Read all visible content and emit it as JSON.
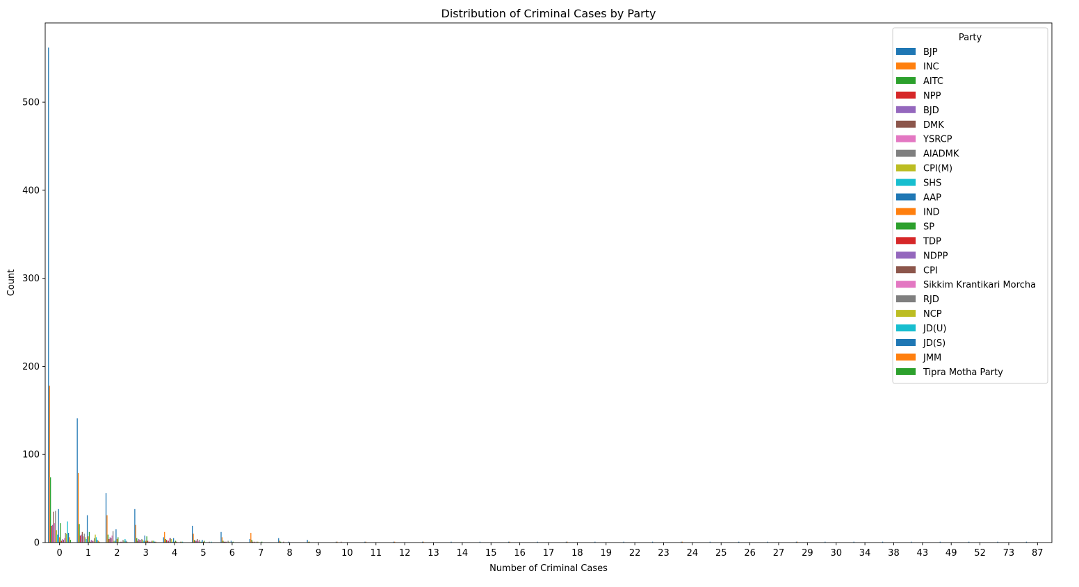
{
  "chart_data": {
    "type": "bar",
    "title": "Distribution of Criminal Cases by Party",
    "xlabel": "Number of Criminal Cases",
    "ylabel": "Count",
    "ylim": [
      0,
      590
    ],
    "yticks": [
      0,
      100,
      200,
      300,
      400,
      500
    ],
    "categories": [
      "0",
      "1",
      "2",
      "3",
      "4",
      "5",
      "6",
      "7",
      "8",
      "9",
      "10",
      "11",
      "12",
      "13",
      "14",
      "15",
      "16",
      "17",
      "18",
      "19",
      "22",
      "23",
      "24",
      "25",
      "26",
      "27",
      "29",
      "30",
      "34",
      "38",
      "43",
      "49",
      "52",
      "73",
      "87"
    ],
    "legend": {
      "title": "Party",
      "position": "top-right"
    },
    "series": [
      {
        "name": "BJP",
        "color": "#1f77b4",
        "values": [
          562,
          141,
          56,
          38,
          6,
          19,
          12,
          4,
          5,
          3,
          1,
          1,
          1,
          1,
          1,
          1,
          1,
          1,
          1,
          1,
          1,
          1,
          1,
          1,
          1,
          1,
          1,
          1,
          1,
          1,
          1,
          1,
          1,
          1,
          1
        ]
      },
      {
        "name": "INC",
        "color": "#ff7f0e",
        "values": [
          178,
          79,
          31,
          20,
          12,
          10,
          6,
          11,
          2,
          1,
          1,
          1,
          1,
          1,
          0,
          0,
          1,
          0,
          1,
          0,
          0,
          0,
          1,
          0,
          0,
          0,
          1,
          0,
          0,
          0,
          0,
          0,
          0,
          0,
          0
        ]
      },
      {
        "name": "AITC",
        "color": "#2ca02c",
        "values": [
          74,
          21,
          9,
          5,
          4,
          3,
          2,
          3,
          1,
          1,
          0,
          0,
          0,
          0,
          0,
          0,
          0,
          0,
          0,
          0,
          0,
          0,
          0,
          0,
          0,
          0,
          0,
          0,
          0,
          0,
          0,
          0,
          0,
          0,
          0
        ]
      },
      {
        "name": "NPP",
        "color": "#d62728",
        "values": [
          19,
          8,
          4,
          2,
          3,
          2,
          1,
          1,
          0,
          0,
          0,
          0,
          0,
          0,
          0,
          0,
          0,
          0,
          0,
          0,
          0,
          0,
          0,
          0,
          0,
          0,
          0,
          0,
          0,
          0,
          0,
          0,
          0,
          0,
          0
        ]
      },
      {
        "name": "BJD",
        "color": "#9467bd",
        "values": [
          20,
          9,
          6,
          4,
          2,
          2,
          1,
          0,
          0,
          0,
          0,
          0,
          0,
          0,
          0,
          0,
          0,
          0,
          0,
          0,
          0,
          0,
          0,
          0,
          0,
          0,
          0,
          0,
          0,
          0,
          0,
          0,
          0,
          0,
          0
        ]
      },
      {
        "name": "DMK",
        "color": "#8c564b",
        "values": [
          35,
          12,
          5,
          3,
          2,
          4,
          1,
          1,
          1,
          0,
          1,
          0,
          0,
          0,
          0,
          0,
          0,
          0,
          0,
          0,
          0,
          0,
          0,
          0,
          0,
          0,
          0,
          0,
          0,
          0,
          0,
          0,
          0,
          0,
          0
        ]
      },
      {
        "name": "YSRCP",
        "color": "#e377c2",
        "values": [
          22,
          7,
          8,
          3,
          5,
          2,
          0,
          0,
          0,
          0,
          0,
          0,
          0,
          0,
          0,
          0,
          0,
          0,
          0,
          0,
          0,
          0,
          0,
          0,
          0,
          0,
          0,
          0,
          0,
          0,
          0,
          0,
          0,
          0,
          0
        ]
      },
      {
        "name": "AIADMK",
        "color": "#7f7f7f",
        "values": [
          36,
          10,
          13,
          4,
          5,
          3,
          2,
          1,
          0,
          0,
          0,
          0,
          0,
          0,
          0,
          0,
          0,
          0,
          0,
          0,
          0,
          0,
          0,
          0,
          0,
          0,
          0,
          0,
          0,
          0,
          0,
          0,
          0,
          0,
          0
        ]
      },
      {
        "name": "CPI(M)",
        "color": "#bcbd22",
        "values": [
          14,
          6,
          2,
          3,
          4,
          1,
          1,
          1,
          0,
          0,
          0,
          0,
          0,
          0,
          0,
          0,
          0,
          0,
          0,
          0,
          0,
          0,
          0,
          0,
          0,
          0,
          0,
          0,
          0,
          0,
          0,
          0,
          0,
          0,
          0
        ]
      },
      {
        "name": "SHS",
        "color": "#17becf",
        "values": [
          9,
          4,
          2,
          2,
          1,
          1,
          0,
          0,
          0,
          0,
          0,
          0,
          0,
          0,
          0,
          0,
          0,
          0,
          0,
          0,
          0,
          0,
          0,
          0,
          0,
          0,
          0,
          0,
          0,
          0,
          0,
          0,
          0,
          0,
          0
        ]
      },
      {
        "name": "AAP",
        "color": "#1f77b4",
        "values": [
          38,
          31,
          15,
          8,
          5,
          3,
          2,
          0,
          1,
          0,
          0,
          0,
          0,
          0,
          0,
          0,
          0,
          0,
          0,
          0,
          0,
          0,
          0,
          0,
          0,
          0,
          0,
          0,
          0,
          0,
          0,
          0,
          0,
          0,
          0
        ]
      },
      {
        "name": "IND",
        "color": "#ff7f0e",
        "values": [
          6,
          7,
          4,
          2,
          1,
          1,
          0,
          0,
          0,
          0,
          0,
          0,
          0,
          0,
          0,
          0,
          0,
          0,
          0,
          0,
          0,
          0,
          0,
          0,
          0,
          0,
          0,
          0,
          0,
          0,
          0,
          0,
          0,
          0,
          0
        ]
      },
      {
        "name": "SP",
        "color": "#2ca02c",
        "values": [
          22,
          12,
          6,
          7,
          2,
          2,
          1,
          1,
          0,
          0,
          0,
          0,
          0,
          0,
          0,
          0,
          0,
          0,
          0,
          0,
          0,
          0,
          0,
          0,
          0,
          0,
          0,
          0,
          0,
          0,
          0,
          0,
          0,
          0,
          0
        ]
      },
      {
        "name": "TDP",
        "color": "#d62728",
        "values": [
          2,
          1,
          0,
          2,
          1,
          0,
          0,
          0,
          0,
          0,
          0,
          0,
          0,
          0,
          0,
          0,
          0,
          0,
          0,
          0,
          0,
          0,
          0,
          0,
          0,
          0,
          0,
          0,
          0,
          0,
          0,
          0,
          0,
          0,
          0
        ]
      },
      {
        "name": "NDPP",
        "color": "#9467bd",
        "values": [
          4,
          3,
          1,
          1,
          0,
          0,
          0,
          0,
          0,
          0,
          0,
          0,
          0,
          0,
          0,
          0,
          0,
          0,
          0,
          0,
          0,
          0,
          0,
          0,
          0,
          0,
          0,
          0,
          0,
          0,
          0,
          0,
          0,
          0,
          0
        ]
      },
      {
        "name": "CPI",
        "color": "#8c564b",
        "values": [
          3,
          2,
          1,
          1,
          0,
          0,
          0,
          0,
          0,
          0,
          0,
          0,
          0,
          0,
          0,
          0,
          0,
          0,
          0,
          0,
          0,
          0,
          0,
          0,
          0,
          0,
          0,
          0,
          0,
          0,
          0,
          0,
          0,
          0,
          0
        ]
      },
      {
        "name": "Sikkim Krantikari Morcha",
        "color": "#e377c2",
        "values": [
          5,
          2,
          1,
          1,
          0,
          0,
          0,
          0,
          0,
          0,
          0,
          0,
          0,
          0,
          0,
          0,
          0,
          0,
          0,
          0,
          0,
          0,
          0,
          0,
          0,
          0,
          0,
          0,
          0,
          0,
          0,
          0,
          0,
          0,
          0
        ]
      },
      {
        "name": "RJD",
        "color": "#7f7f7f",
        "values": [
          11,
          5,
          3,
          2,
          1,
          1,
          0,
          0,
          0,
          0,
          0,
          0,
          0,
          0,
          0,
          0,
          0,
          0,
          0,
          0,
          0,
          0,
          0,
          0,
          0,
          0,
          0,
          0,
          0,
          0,
          0,
          0,
          0,
          0,
          0
        ]
      },
      {
        "name": "NCP",
        "color": "#bcbd22",
        "values": [
          10,
          9,
          2,
          2,
          1,
          0,
          0,
          0,
          0,
          0,
          0,
          0,
          0,
          0,
          0,
          0,
          0,
          0,
          0,
          0,
          0,
          0,
          0,
          0,
          0,
          0,
          0,
          0,
          0,
          0,
          0,
          0,
          0,
          0,
          0
        ]
      },
      {
        "name": "JD(U)",
        "color": "#17becf",
        "values": [
          24,
          6,
          4,
          2,
          1,
          1,
          0,
          0,
          0,
          0,
          0,
          0,
          0,
          0,
          0,
          0,
          0,
          0,
          0,
          0,
          0,
          0,
          0,
          0,
          0,
          0,
          0,
          0,
          0,
          0,
          0,
          0,
          0,
          0,
          0
        ]
      },
      {
        "name": "JD(S)",
        "color": "#1f77b4",
        "values": [
          11,
          3,
          2,
          1,
          0,
          0,
          0,
          0,
          0,
          0,
          0,
          0,
          0,
          0,
          0,
          0,
          0,
          0,
          0,
          0,
          0,
          0,
          0,
          0,
          0,
          0,
          0,
          0,
          0,
          0,
          0,
          0,
          0,
          0,
          0
        ]
      },
      {
        "name": "JMM",
        "color": "#ff7f0e",
        "values": [
          6,
          2,
          1,
          1,
          0,
          0,
          0,
          0,
          0,
          0,
          0,
          0,
          0,
          0,
          0,
          0,
          0,
          0,
          0,
          0,
          0,
          0,
          0,
          0,
          0,
          0,
          0,
          0,
          0,
          0,
          0,
          0,
          0,
          0,
          0
        ]
      },
      {
        "name": "Tipra Motha Party",
        "color": "#2ca02c",
        "values": [
          3,
          1,
          0,
          0,
          0,
          0,
          0,
          0,
          0,
          0,
          0,
          0,
          0,
          0,
          0,
          0,
          0,
          0,
          0,
          0,
          0,
          0,
          0,
          0,
          0,
          0,
          0,
          0,
          0,
          0,
          0,
          0,
          0,
          0,
          0
        ]
      }
    ]
  }
}
